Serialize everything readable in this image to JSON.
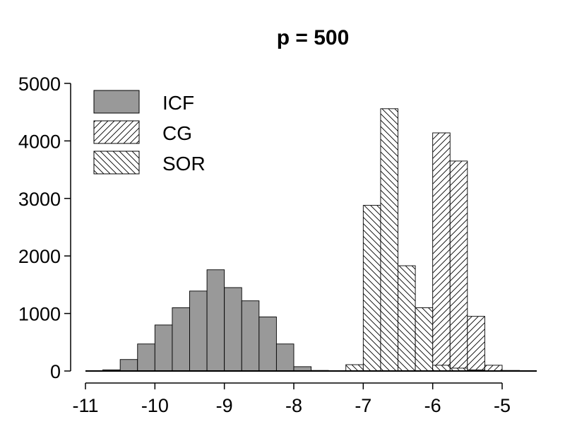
{
  "chart_data": {
    "type": "bar",
    "title": "p = 500",
    "xlabel": "",
    "ylabel": "",
    "xlim": [
      -11,
      -4.5
    ],
    "ylim": [
      0,
      5000
    ],
    "x_ticks": [
      -11,
      -10,
      -9,
      -8,
      -7,
      -6,
      -5
    ],
    "y_ticks": [
      0,
      1000,
      2000,
      3000,
      4000,
      5000
    ],
    "x_tick_labels": [
      "-11",
      "-10",
      "-9",
      "-8",
      "-7",
      "-6",
      "-5"
    ],
    "y_tick_labels": [
      "0",
      "1000",
      "2000",
      "3000",
      "4000",
      "5000"
    ],
    "bin_width": 0.25,
    "legend_position": "top-left",
    "grid": false,
    "series": [
      {
        "name": "ICF",
        "fill": "#999999",
        "pattern": "solid",
        "bins": [
          {
            "x0": -10.75,
            "value": 20
          },
          {
            "x0": -10.5,
            "value": 200
          },
          {
            "x0": -10.25,
            "value": 470
          },
          {
            "x0": -10.0,
            "value": 800
          },
          {
            "x0": -9.75,
            "value": 1100
          },
          {
            "x0": -9.5,
            "value": 1390
          },
          {
            "x0": -9.25,
            "value": 1760
          },
          {
            "x0": -9.0,
            "value": 1450
          },
          {
            "x0": -8.75,
            "value": 1220
          },
          {
            "x0": -8.5,
            "value": 940
          },
          {
            "x0": -8.25,
            "value": 470
          },
          {
            "x0": -8.0,
            "value": 75
          },
          {
            "x0": -7.75,
            "value": 10
          }
        ]
      },
      {
        "name": "CG",
        "fill": "#ffffff",
        "pattern": "diagonal-forward",
        "bins": [
          {
            "x0": -6.25,
            "value": 360
          },
          {
            "x0": -6.0,
            "value": 4140
          },
          {
            "x0": -5.75,
            "value": 3650
          },
          {
            "x0": -5.5,
            "value": 950
          },
          {
            "x0": -5.25,
            "value": 100
          },
          {
            "x0": -5.0,
            "value": 10
          }
        ]
      },
      {
        "name": "SOR",
        "fill": "#ffffff",
        "pattern": "diagonal-backward",
        "bins": [
          {
            "x0": -7.25,
            "value": 110
          },
          {
            "x0": -7.0,
            "value": 2880
          },
          {
            "x0": -6.75,
            "value": 4560
          },
          {
            "x0": -6.5,
            "value": 1830
          },
          {
            "x0": -6.25,
            "value": 1100
          },
          {
            "x0": -6.0,
            "value": 100
          },
          {
            "x0": -5.75,
            "value": 50
          },
          {
            "x0": -5.5,
            "value": 20
          }
        ]
      }
    ]
  }
}
